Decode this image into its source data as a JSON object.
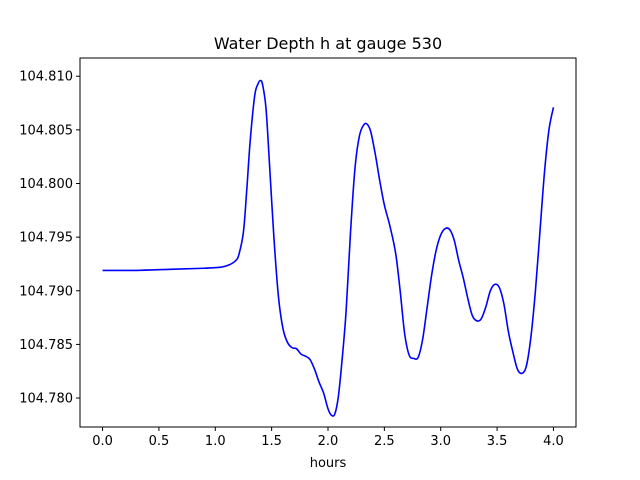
{
  "chart_data": {
    "type": "line",
    "title": "Water Depth h at gauge 530",
    "xlabel": "hours",
    "ylabel": "",
    "xlim": [
      -0.2,
      4.2
    ],
    "ylim": [
      104.7773,
      104.8117
    ],
    "xticks": [
      0.0,
      0.5,
      1.0,
      1.5,
      2.0,
      2.5,
      3.0,
      3.5,
      4.0
    ],
    "xtick_labels": [
      "0.0",
      "0.5",
      "1.0",
      "1.5",
      "2.0",
      "2.5",
      "3.0",
      "3.5",
      "4.0"
    ],
    "yticks": [
      104.78,
      104.785,
      104.79,
      104.795,
      104.8,
      104.805,
      104.81
    ],
    "ytick_labels": [
      "104.780",
      "104.785",
      "104.790",
      "104.795",
      "104.800",
      "104.805",
      "104.810"
    ],
    "grid": false,
    "legend": "none",
    "series": [
      {
        "color": "#0000ff",
        "x": [
          0.0,
          0.3,
          0.6,
          0.9,
          1.05,
          1.12,
          1.18,
          1.21,
          1.25,
          1.28,
          1.31,
          1.35,
          1.38,
          1.4,
          1.42,
          1.45,
          1.48,
          1.52,
          1.56,
          1.6,
          1.64,
          1.68,
          1.72,
          1.76,
          1.8,
          1.84,
          1.88,
          1.92,
          1.96,
          2.0,
          2.03,
          2.06,
          2.09,
          2.12,
          2.16,
          2.2,
          2.24,
          2.28,
          2.32,
          2.35,
          2.38,
          2.42,
          2.46,
          2.5,
          2.55,
          2.6,
          2.64,
          2.68,
          2.72,
          2.76,
          2.8,
          2.84,
          2.88,
          2.92,
          2.96,
          3.0,
          3.04,
          3.08,
          3.12,
          3.16,
          3.2,
          3.24,
          3.28,
          3.32,
          3.36,
          3.4,
          3.44,
          3.48,
          3.52,
          3.56,
          3.6,
          3.64,
          3.68,
          3.72,
          3.76,
          3.8,
          3.84,
          3.88,
          3.92,
          3.96,
          4.0
        ],
        "y": [
          104.7919,
          104.7919,
          104.792,
          104.7921,
          104.7922,
          104.7924,
          104.7928,
          104.7934,
          104.7955,
          104.7995,
          104.804,
          104.8082,
          104.8093,
          104.8096,
          104.8092,
          104.807,
          104.802,
          104.795,
          104.7895,
          104.7865,
          104.7852,
          104.7847,
          104.7846,
          104.7841,
          104.7839,
          104.7836,
          104.7827,
          104.7815,
          104.7805,
          104.779,
          104.7784,
          104.7785,
          104.78,
          104.783,
          104.788,
          104.7955,
          104.8015,
          104.8045,
          104.8055,
          104.8055,
          104.8048,
          104.8027,
          104.8002,
          104.798,
          104.796,
          104.7935,
          104.79,
          104.786,
          104.784,
          104.7837,
          104.7838,
          104.7855,
          104.7885,
          104.7915,
          104.7938,
          104.7952,
          104.7958,
          104.7957,
          104.7947,
          104.7928,
          104.7912,
          104.7893,
          104.7877,
          104.7872,
          104.7874,
          104.7885,
          104.79,
          104.7906,
          104.7903,
          104.7888,
          104.7862,
          104.7843,
          104.7827,
          104.7823,
          104.783,
          104.7857,
          104.79,
          104.7955,
          104.801,
          104.805,
          104.8071
        ]
      }
    ]
  }
}
